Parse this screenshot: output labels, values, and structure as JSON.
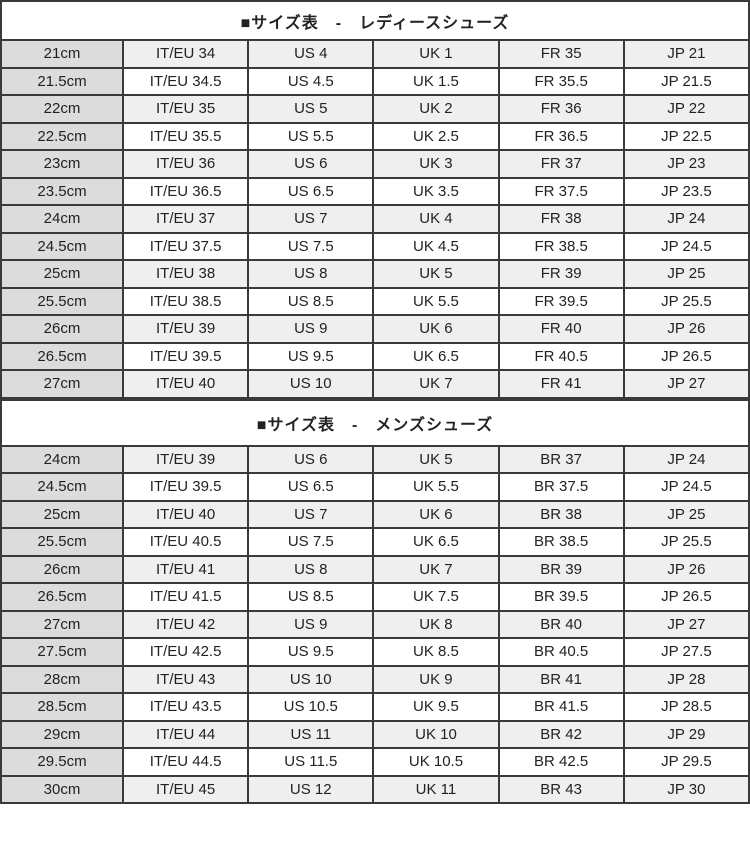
{
  "colors": {
    "border": "#3a3a3a",
    "text": "#222222",
    "cm_col_bg": "#dcdcdc",
    "row_odd_bg": "#efefef",
    "row_even_bg": "#ffffff",
    "title_bg": "#ffffff"
  },
  "tables": [
    {
      "id": "ladies",
      "title": "■サイズ表　-　レディースシューズ",
      "rows": [
        [
          "21cm",
          "IT/EU 34",
          "US 4",
          "UK 1",
          "FR 35",
          "JP 21"
        ],
        [
          "21.5cm",
          "IT/EU 34.5",
          "US 4.5",
          "UK 1.5",
          "FR 35.5",
          "JP 21.5"
        ],
        [
          "22cm",
          "IT/EU 35",
          "US 5",
          "UK 2",
          "FR 36",
          "JP 22"
        ],
        [
          "22.5cm",
          "IT/EU 35.5",
          "US 5.5",
          "UK 2.5",
          "FR 36.5",
          "JP 22.5"
        ],
        [
          "23cm",
          "IT/EU 36",
          "US 6",
          "UK 3",
          "FR 37",
          "JP 23"
        ],
        [
          "23.5cm",
          "IT/EU 36.5",
          "US 6.5",
          "UK 3.5",
          "FR 37.5",
          "JP 23.5"
        ],
        [
          "24cm",
          "IT/EU 37",
          "US 7",
          "UK 4",
          "FR 38",
          "JP 24"
        ],
        [
          "24.5cm",
          "IT/EU 37.5",
          "US 7.5",
          "UK 4.5",
          "FR 38.5",
          "JP 24.5"
        ],
        [
          "25cm",
          "IT/EU 38",
          "US 8",
          "UK 5",
          "FR 39",
          "JP 25"
        ],
        [
          "25.5cm",
          "IT/EU 38.5",
          "US 8.5",
          "UK 5.5",
          "FR 39.5",
          "JP 25.5"
        ],
        [
          "26cm",
          "IT/EU 39",
          "US 9",
          "UK 6",
          "FR 40",
          "JP 26"
        ],
        [
          "26.5cm",
          "IT/EU 39.5",
          "US 9.5",
          "UK 6.5",
          "FR 40.5",
          "JP 26.5"
        ],
        [
          "27cm",
          "IT/EU 40",
          "US 10",
          "UK 7",
          "FR 41",
          "JP 27"
        ]
      ]
    },
    {
      "id": "mens",
      "title": "■サイズ表　-　メンズシューズ",
      "rows": [
        [
          "24cm",
          "IT/EU 39",
          "US 6",
          "UK 5",
          "BR 37",
          "JP 24"
        ],
        [
          "24.5cm",
          "IT/EU 39.5",
          "US 6.5",
          "UK 5.5",
          "BR 37.5",
          "JP 24.5"
        ],
        [
          "25cm",
          "IT/EU 40",
          "US 7",
          "UK 6",
          "BR 38",
          "JP 25"
        ],
        [
          "25.5cm",
          "IT/EU 40.5",
          "US 7.5",
          "UK 6.5",
          "BR 38.5",
          "JP 25.5"
        ],
        [
          "26cm",
          "IT/EU 41",
          "US 8",
          "UK 7",
          "BR 39",
          "JP 26"
        ],
        [
          "26.5cm",
          "IT/EU 41.5",
          "US 8.5",
          "UK 7.5",
          "BR 39.5",
          "JP 26.5"
        ],
        [
          "27cm",
          "IT/EU 42",
          "US 9",
          "UK 8",
          "BR 40",
          "JP 27"
        ],
        [
          "27.5cm",
          "IT/EU 42.5",
          "US 9.5",
          "UK 8.5",
          "BR 40.5",
          "JP 27.5"
        ],
        [
          "28cm",
          "IT/EU 43",
          "US 10",
          "UK 9",
          "BR 41",
          "JP 28"
        ],
        [
          "28.5cm",
          "IT/EU 43.5",
          "US 10.5",
          "UK 9.5",
          "BR 41.5",
          "JP 28.5"
        ],
        [
          "29cm",
          "IT/EU 44",
          "US 11",
          "UK 10",
          "BR 42",
          "JP 29"
        ],
        [
          "29.5cm",
          "IT/EU 44.5",
          "US 11.5",
          "UK 10.5",
          "BR 42.5",
          "JP 29.5"
        ],
        [
          "30cm",
          "IT/EU 45",
          "US 12",
          "UK 11",
          "BR 43",
          "JP 30"
        ]
      ]
    }
  ]
}
